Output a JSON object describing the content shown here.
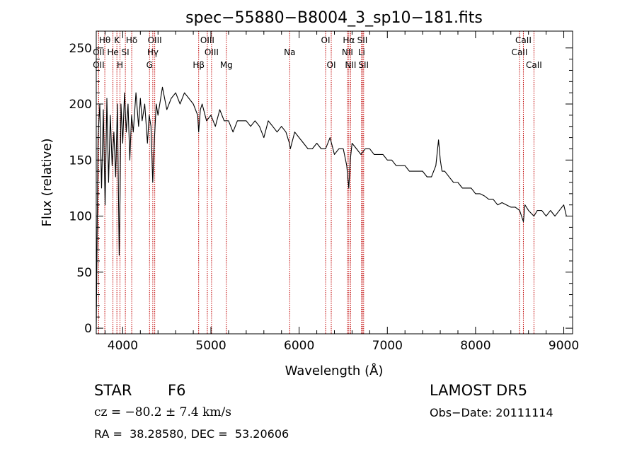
{
  "chart_data": {
    "type": "line",
    "title": "spec−55880−B8004_3_sp10−181.fits",
    "xlabel": "Wavelength (Å)",
    "ylabel": "Flux (relative)",
    "xlim": [
      3700,
      9100
    ],
    "ylim": [
      -5,
      265
    ],
    "xticks": [
      4000,
      5000,
      6000,
      7000,
      8000,
      9000
    ],
    "yticks": [
      0,
      50,
      100,
      150,
      200,
      250
    ],
    "grid": false,
    "series": [
      {
        "x": [
          3700,
          3720,
          3740,
          3760,
          3780,
          3800,
          3820,
          3840,
          3860,
          3880,
          3900,
          3920,
          3940,
          3960,
          3970,
          3980,
          4000,
          4020,
          4040,
          4060,
          4080,
          4100,
          4120,
          4150,
          4180,
          4200,
          4220,
          4250,
          4280,
          4300,
          4320,
          4340,
          4360,
          4380,
          4400,
          4450,
          4500,
          4550,
          4600,
          4650,
          4700,
          4750,
          4800,
          4850,
          4861,
          4880,
          4900,
          4950,
          5000,
          5050,
          5100,
          5150,
          5200,
          5250,
          5300,
          5350,
          5400,
          5450,
          5500,
          5550,
          5600,
          5650,
          5700,
          5750,
          5800,
          5850,
          5890,
          5900,
          5950,
          6000,
          6050,
          6100,
          6150,
          6200,
          6250,
          6300,
          6350,
          6400,
          6450,
          6500,
          6540,
          6563,
          6580,
          6600,
          6650,
          6700,
          6750,
          6800,
          6850,
          6900,
          6950,
          7000,
          7050,
          7100,
          7150,
          7200,
          7250,
          7300,
          7350,
          7400,
          7450,
          7500,
          7550,
          7580,
          7600,
          7620,
          7650,
          7700,
          7750,
          7800,
          7850,
          7900,
          7950,
          8000,
          8050,
          8100,
          8150,
          8200,
          8250,
          8300,
          8350,
          8400,
          8450,
          8500,
          8542,
          8560,
          8600,
          8662,
          8700,
          8750,
          8800,
          8850,
          8900,
          8950,
          9000,
          9030
        ],
        "values": [
          0,
          170,
          200,
          125,
          195,
          110,
          205,
          130,
          190,
          145,
          175,
          135,
          200,
          65,
          120,
          200,
          165,
          210,
          175,
          200,
          150,
          190,
          175,
          210,
          180,
          205,
          185,
          200,
          165,
          190,
          180,
          130,
          170,
          200,
          190,
          215,
          195,
          205,
          210,
          200,
          210,
          205,
          200,
          190,
          175,
          195,
          200,
          185,
          190,
          180,
          195,
          185,
          185,
          175,
          185,
          185,
          185,
          180,
          185,
          180,
          170,
          185,
          180,
          175,
          180,
          175,
          165,
          160,
          175,
          170,
          165,
          160,
          160,
          165,
          160,
          160,
          170,
          155,
          160,
          160,
          145,
          125,
          150,
          165,
          160,
          155,
          160,
          160,
          155,
          155,
          155,
          150,
          150,
          145,
          145,
          145,
          140,
          140,
          140,
          140,
          135,
          135,
          145,
          168,
          150,
          140,
          140,
          135,
          130,
          130,
          125,
          125,
          125,
          120,
          120,
          118,
          115,
          115,
          110,
          112,
          110,
          108,
          108,
          105,
          95,
          110,
          105,
          100,
          105,
          105,
          100,
          105,
          100,
          105,
          110,
          100
        ]
      }
    ],
    "lines": [
      {
        "label": "Hθ",
        "x": 3797,
        "row": 1
      },
      {
        "label": "OII",
        "x": 3727,
        "row": 2
      },
      {
        "label": "OII",
        "x": 3727,
        "row": 3
      },
      {
        "label": "He",
        "x": 3889,
        "row": 2
      },
      {
        "label": "K",
        "x": 3934,
        "row": 1
      },
      {
        "label": "H",
        "x": 3969,
        "row": 3
      },
      {
        "label": "SI",
        "x": 4030,
        "row": 2
      },
      {
        "label": "Hδ",
        "x": 4102,
        "row": 1
      },
      {
        "label": "OIII",
        "x": 4363,
        "row": 1
      },
      {
        "label": "Hγ",
        "x": 4341,
        "row": 2
      },
      {
        "label": "G",
        "x": 4304,
        "row": 3
      },
      {
        "label": "OIII",
        "x": 4959,
        "row": 1
      },
      {
        "label": "OIII",
        "x": 5007,
        "row": 2
      },
      {
        "label": "Hβ",
        "x": 4861,
        "row": 3
      },
      {
        "label": "Mg",
        "x": 5175,
        "row": 3
      },
      {
        "label": "Na",
        "x": 5893,
        "row": 2
      },
      {
        "label": "OI",
        "x": 6300,
        "row": 1
      },
      {
        "label": "OI",
        "x": 6364,
        "row": 3
      },
      {
        "label": "Hα",
        "x": 6563,
        "row": 1
      },
      {
        "label": "NII",
        "x": 6548,
        "row": 2
      },
      {
        "label": "NII",
        "x": 6584,
        "row": 3
      },
      {
        "label": "SII",
        "x": 6717,
        "row": 1
      },
      {
        "label": "Li",
        "x": 6708,
        "row": 2
      },
      {
        "label": "SII",
        "x": 6731,
        "row": 3
      },
      {
        "label": "CaII",
        "x": 8542,
        "row": 1
      },
      {
        "label": "CaII",
        "x": 8498,
        "row": 2
      },
      {
        "label": "CaII",
        "x": 8662,
        "row": 3
      }
    ]
  },
  "info": {
    "object_type": "STAR",
    "subclass": "F6",
    "survey": "LAMOST DR5",
    "velocity": "cz = −80.2 ± 7.4 km/s",
    "obs_date": "Obs−Date: 20111114",
    "coords": "RA =  38.28580, DEC =  53.20606"
  }
}
